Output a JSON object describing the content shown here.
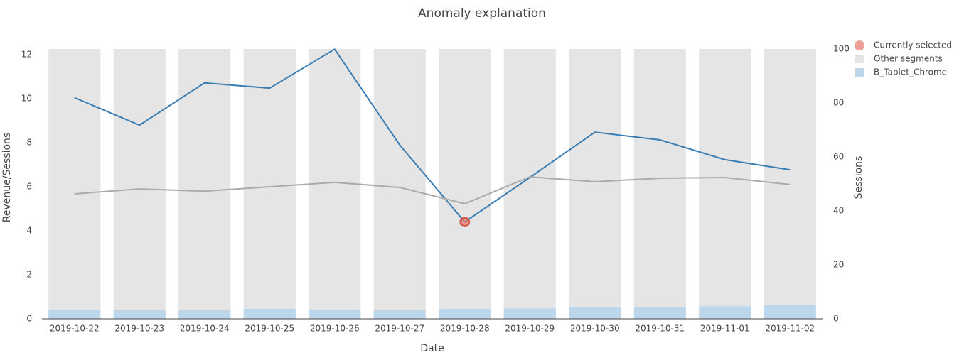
{
  "chart_data": {
    "type": "combo",
    "title": "Anomaly explanation",
    "x_label": "Date",
    "y_label": "Revenue/Sessions",
    "y2_label": "Sessions",
    "categories": [
      "2019-10-22",
      "2019-10-23",
      "2019-10-24",
      "2019-10-25",
      "2019-10-26",
      "2019-10-27",
      "2019-10-28",
      "2019-10-29",
      "2019-10-30",
      "2019-10-31",
      "2019-11-01",
      "2019-11-02"
    ],
    "ylim": [
      0,
      12.26
    ],
    "yticks": [
      0,
      2,
      4,
      6,
      8,
      10,
      12
    ],
    "y2lim": [
      0,
      100
    ],
    "y2ticks": [
      0,
      20,
      40,
      60,
      80,
      100
    ],
    "legend": "top-right",
    "series": [
      {
        "name": "Currently selected",
        "type": "scatter",
        "color": "#e8786a",
        "values": [
          null,
          null,
          null,
          null,
          null,
          null,
          4.4,
          null,
          null,
          null,
          null,
          null
        ]
      },
      {
        "name": "Other segments",
        "type": "bar",
        "axis": "y2",
        "color": "#e5e5e5",
        "values": [
          96.6,
          96.8,
          96.8,
          96.3,
          96.6,
          96.8,
          96.3,
          96.1,
          95.5,
          95.5,
          95.3,
          95.0
        ]
      },
      {
        "name": "B_Tablet_Chrome",
        "type": "bar",
        "axis": "y2",
        "color": "#bcd6ec",
        "values": [
          3.4,
          3.2,
          3.2,
          3.7,
          3.4,
          3.2,
          3.7,
          3.9,
          4.5,
          4.5,
          4.7,
          5.0
        ]
      },
      {
        "type": "line",
        "color": "#3a7db3",
        "values": [
          10.05,
          8.8,
          10.72,
          10.48,
          12.25,
          7.9,
          4.4,
          6.42,
          8.48,
          8.13,
          7.23,
          6.77
        ]
      },
      {
        "type": "line",
        "color": "#aaaaaa",
        "values": [
          5.68,
          5.9,
          5.8,
          6.0,
          6.2,
          5.97,
          5.23,
          6.45,
          6.23,
          6.39,
          6.42,
          6.1
        ]
      }
    ]
  }
}
